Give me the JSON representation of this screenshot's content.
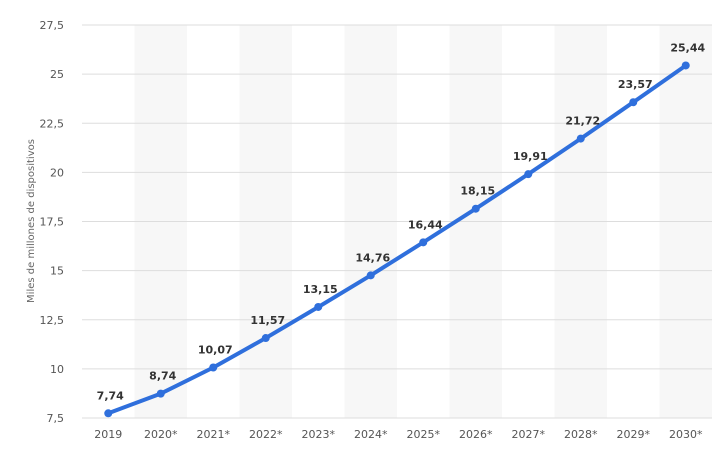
{
  "chart_data": {
    "type": "line",
    "title": "",
    "xlabel": "",
    "ylabel": "Miles de millones de dispositivos",
    "categories": [
      "2019",
      "2020*",
      "2021*",
      "2022*",
      "2023*",
      "2024*",
      "2025*",
      "2026*",
      "2027*",
      "2028*",
      "2029*",
      "2030*"
    ],
    "values": [
      7.74,
      8.74,
      10.07,
      11.57,
      13.15,
      14.76,
      16.44,
      18.15,
      19.91,
      21.72,
      23.57,
      25.44
    ],
    "value_labels": [
      "7,74",
      "8,74",
      "10,07",
      "11,57",
      "13,15",
      "14,76",
      "16,44",
      "18,15",
      "19,91",
      "21,72",
      "23,57",
      "25,44"
    ],
    "yticks": [
      7.5,
      10,
      12.5,
      15,
      17.5,
      20,
      22.5,
      25,
      27.5
    ],
    "ytick_labels": [
      "7,5",
      "10",
      "12,5",
      "15",
      "17,5",
      "20",
      "22,5",
      "25",
      "27,5"
    ],
    "ylim": [
      7.5,
      27.5
    ],
    "grid": true,
    "colors": {
      "line": "#2f6fdc",
      "band": "#f7f7f7",
      "grid": "#dddddd"
    }
  }
}
